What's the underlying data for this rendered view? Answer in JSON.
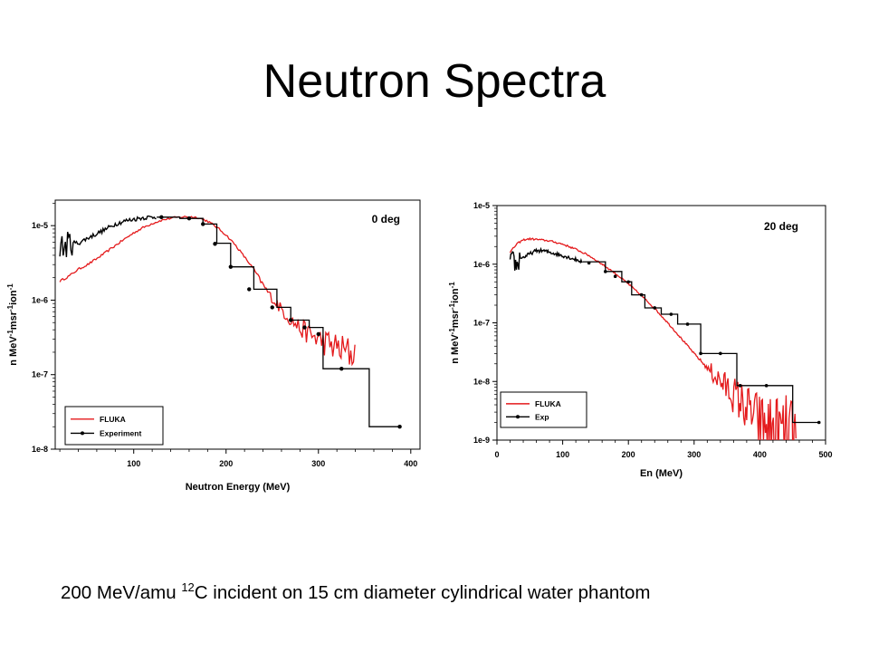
{
  "slide": {
    "title": "Neutron Spectra",
    "caption": {
      "before": "200 MeV/amu ",
      "superscript": "12",
      "after": "C incident on 15 cm diameter cylindrical water phantom"
    }
  },
  "colors": {
    "fluka": "#e41a1c",
    "experiment": "#000000",
    "axis": "#000000"
  },
  "chart_data": [
    {
      "type": "line",
      "title": "",
      "annotation": "0 deg",
      "xlabel": "Neutron Energy (MeV)",
      "ylabel_parts": {
        "base1": "n MeV",
        "sup1": "-1",
        "base2": "msr",
        "sup2": "-1",
        "base3": "ion",
        "sup3": "-1"
      },
      "xlim": [
        15,
        410
      ],
      "ylim": [
        1e-08,
        2.2e-05
      ],
      "yscale": "log",
      "xticks": [
        100,
        200,
        300,
        400
      ],
      "xtick_labels": [
        "100",
        "200",
        "300",
        "400"
      ],
      "yticks": [
        1e-08,
        1e-07,
        1e-06,
        1e-05
      ],
      "ytick_labels": [
        "1e-8",
        "1e-7",
        "1e-6",
        "1e-5"
      ],
      "legend_position": "bottom-left",
      "series": [
        {
          "name": "FLUKA",
          "style": "noisy-line",
          "x": [
            20,
            30,
            40,
            50,
            60,
            70,
            80,
            90,
            100,
            110,
            120,
            130,
            140,
            150,
            160,
            170,
            180,
            190,
            200,
            210,
            220,
            230,
            240,
            250,
            260,
            270,
            280,
            290,
            300,
            310,
            320,
            330,
            340
          ],
          "y": [
            1.8e-06,
            2.1e-06,
            2.6e-06,
            3e-06,
            3.6e-06,
            4.4e-06,
            5.4e-06,
            6.6e-06,
            8e-06,
            9.4e-06,
            1.07e-05,
            1.18e-05,
            1.26e-05,
            1.3e-05,
            1.32e-05,
            1.28e-05,
            1.15e-05,
            9.5e-06,
            7.5e-06,
            5.5e-06,
            3.8e-06,
            2.6e-06,
            1.6e-06,
            1.05e-06,
            7.5e-07,
            5.5e-07,
            4.2e-07,
            3.5e-07,
            3e-07,
            2.6e-07,
            2.3e-07,
            2e-07,
            1.9e-07
          ]
        },
        {
          "name": "Experiment",
          "style": "noisy-line-then-step",
          "x": [
            20,
            25,
            30,
            40,
            50,
            60,
            70,
            80,
            90,
            100,
            110,
            120,
            125
          ],
          "y": [
            5.5e-06,
            5e-06,
            6e-06,
            5.8e-06,
            6.8e-06,
            7.8e-06,
            9e-06,
            1.05e-05,
            1.15e-05,
            1.22e-05,
            1.28e-05,
            1.3e-05,
            1.32e-05
          ],
          "step_edges": [
            125,
            150,
            175,
            190,
            205,
            230,
            255,
            270,
            290,
            305,
            330,
            355,
            390
          ],
          "step_values": [
            1.3e-05,
            1.25e-05,
            1.05e-05,
            5.8e-06,
            2.8e-06,
            1.4e-06,
            8e-07,
            5.4e-07,
            4.3e-07,
            1.2e-07,
            1.2e-07,
            2e-08
          ],
          "marker_x": [
            130,
            160,
            175,
            188,
            205,
            225,
            250,
            270,
            285,
            300,
            325,
            388
          ],
          "marker_y": [
            1.3e-05,
            1.25e-05,
            1.05e-05,
            5.7e-06,
            2.8e-06,
            1.4e-06,
            8e-07,
            5.4e-07,
            4.3e-07,
            3.5e-07,
            1.2e-07,
            2e-08
          ]
        }
      ]
    },
    {
      "type": "line",
      "title": "",
      "annotation": "20 deg",
      "xlabel": "En (MeV)",
      "ylabel_parts": {
        "base1": "n MeV",
        "sup1": "-1",
        "base2": "msr",
        "sup2": "-1",
        "base3": "ion",
        "sup3": "-1"
      },
      "xlim": [
        0,
        500
      ],
      "ylim": [
        1e-09,
        1e-05
      ],
      "yscale": "log",
      "xticks": [
        0,
        100,
        200,
        300,
        400,
        500
      ],
      "xtick_labels": [
        "0",
        "100",
        "200",
        "300",
        "400",
        "500"
      ],
      "yticks": [
        1e-09,
        1e-08,
        1e-07,
        1e-06,
        1e-05
      ],
      "ytick_labels": [
        "1e-9",
        "1e-8",
        "1e-7",
        "1e-6",
        "1e-5"
      ],
      "legend_position": "bottom-left",
      "series": [
        {
          "name": "FLUKA",
          "style": "noisy-line",
          "x": [
            20,
            30,
            40,
            50,
            60,
            80,
            100,
            120,
            140,
            160,
            180,
            200,
            220,
            240,
            260,
            280,
            300,
            320,
            340,
            360,
            380,
            400,
            420,
            440,
            455
          ],
          "y": [
            1.6e-06,
            2.2e-06,
            2.6e-06,
            2.7e-06,
            2.65e-06,
            2.5e-06,
            2.2e-06,
            1.8e-06,
            1.4e-06,
            1e-06,
            7e-07,
            4.6e-07,
            2.9e-07,
            1.75e-07,
            1e-07,
            5.5e-08,
            3e-08,
            1.7e-08,
            1e-08,
            6e-09,
            3.5e-09,
            2e-09,
            1.5e-09,
            1.2e-09,
            1e-09
          ]
        },
        {
          "name": "Exp",
          "style": "noisy-line-then-step",
          "x": [
            20,
            25,
            30,
            35,
            40,
            50,
            60,
            70,
            80,
            90,
            100,
            110,
            120,
            130
          ],
          "y": [
            1e-06,
            1.2e-06,
            9e-07,
            1.3e-06,
            1.3e-06,
            1.5e-06,
            1.7e-06,
            1.7e-06,
            1.6e-06,
            1.5e-06,
            1.4e-06,
            1.3e-06,
            1.2e-06,
            1.1e-06
          ],
          "step_edges": [
            130,
            165,
            190,
            205,
            225,
            250,
            275,
            310,
            335,
            365,
            400,
            450,
            490
          ],
          "step_values": [
            1.1e-06,
            7.5e-07,
            5e-07,
            3e-07,
            1.8e-07,
            1.4e-07,
            9.5e-08,
            3e-08,
            3e-08,
            8.5e-09,
            8.5e-09,
            2e-09
          ],
          "marker_x": [
            140,
            165,
            180,
            200,
            220,
            240,
            265,
            290,
            310,
            340,
            370,
            410,
            490
          ],
          "marker_y": [
            1.05e-06,
            7.5e-07,
            6.2e-07,
            5e-07,
            3e-07,
            1.8e-07,
            1.4e-07,
            9.5e-08,
            3e-08,
            3e-08,
            8.5e-09,
            8.5e-09,
            2e-09
          ]
        }
      ]
    }
  ]
}
